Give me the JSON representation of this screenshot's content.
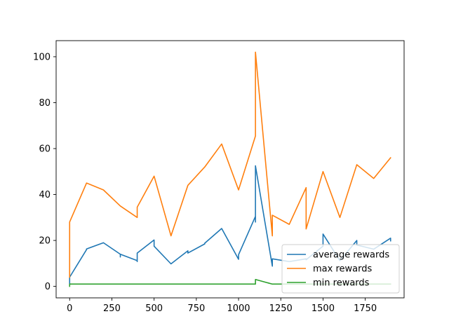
{
  "chart_data": {
    "type": "line",
    "title": "",
    "xlabel": "",
    "ylabel": "",
    "xlim": [
      -80,
      1980
    ],
    "ylim": [
      -5,
      107
    ],
    "xticks": [
      0,
      250,
      500,
      750,
      1000,
      1250,
      1500,
      1750
    ],
    "yticks": [
      0,
      20,
      40,
      60,
      80,
      100
    ],
    "xtick_labels": [
      "0",
      "250",
      "500",
      "750",
      "1000",
      "1250",
      "1500",
      "1750"
    ],
    "ytick_labels": [
      "0",
      "20",
      "40",
      "60",
      "80",
      "100"
    ],
    "grid": false,
    "legend_position": "lower right",
    "series": [
      {
        "name": "average rewards",
        "color": "#1f77b4",
        "points": [
          [
            0,
            1
          ],
          [
            0,
            4
          ],
          [
            100,
            16
          ],
          [
            100,
            16.3
          ],
          [
            200,
            19
          ],
          [
            300,
            14
          ],
          [
            300,
            12.8
          ],
          [
            300,
            14
          ],
          [
            400,
            11.2
          ],
          [
            400,
            10.8
          ],
          [
            400,
            14.5
          ],
          [
            500,
            20.2
          ],
          [
            500,
            17.5
          ],
          [
            600,
            9.8
          ],
          [
            700,
            15.5
          ],
          [
            700,
            14.5
          ],
          [
            800,
            18.5
          ],
          [
            800,
            18.8
          ],
          [
            900,
            25.2
          ],
          [
            1000,
            11.8
          ],
          [
            1000,
            13.8
          ],
          [
            1100,
            30.5
          ],
          [
            1100,
            28
          ],
          [
            1100,
            52.5
          ],
          [
            1200,
            8.8
          ],
          [
            1200,
            12
          ],
          [
            1300,
            10.8
          ],
          [
            1400,
            12
          ],
          [
            1400,
            11.6
          ],
          [
            1500,
            17.5
          ],
          [
            1500,
            22.8
          ],
          [
            1600,
            11.2
          ],
          [
            1700,
            20
          ],
          [
            1700,
            18
          ],
          [
            1800,
            16.2
          ],
          [
            1900,
            21
          ],
          [
            1900,
            19.8
          ]
        ]
      },
      {
        "name": "max rewards",
        "color": "#ff7f0e",
        "points": [
          [
            0,
            4
          ],
          [
            0,
            28
          ],
          [
            100,
            45
          ],
          [
            200,
            42
          ],
          [
            300,
            35
          ],
          [
            400,
            30
          ],
          [
            400,
            34.5
          ],
          [
            500,
            48
          ],
          [
            600,
            22
          ],
          [
            700,
            44
          ],
          [
            800,
            52
          ],
          [
            900,
            62
          ],
          [
            1000,
            42
          ],
          [
            1100,
            65.5
          ],
          [
            1100,
            69.5
          ],
          [
            1100,
            102
          ],
          [
            1200,
            22
          ],
          [
            1200,
            31
          ],
          [
            1300,
            27
          ],
          [
            1400,
            43
          ],
          [
            1400,
            25
          ],
          [
            1500,
            50
          ],
          [
            1600,
            30
          ],
          [
            1700,
            53
          ],
          [
            1800,
            47
          ],
          [
            1900,
            56
          ]
        ]
      },
      {
        "name": "min rewards",
        "color": "#2ca02c",
        "points": [
          [
            0,
            0
          ],
          [
            0,
            1
          ],
          [
            1100,
            1
          ],
          [
            1100,
            3
          ],
          [
            1200,
            1
          ],
          [
            1900,
            1
          ]
        ]
      }
    ]
  }
}
